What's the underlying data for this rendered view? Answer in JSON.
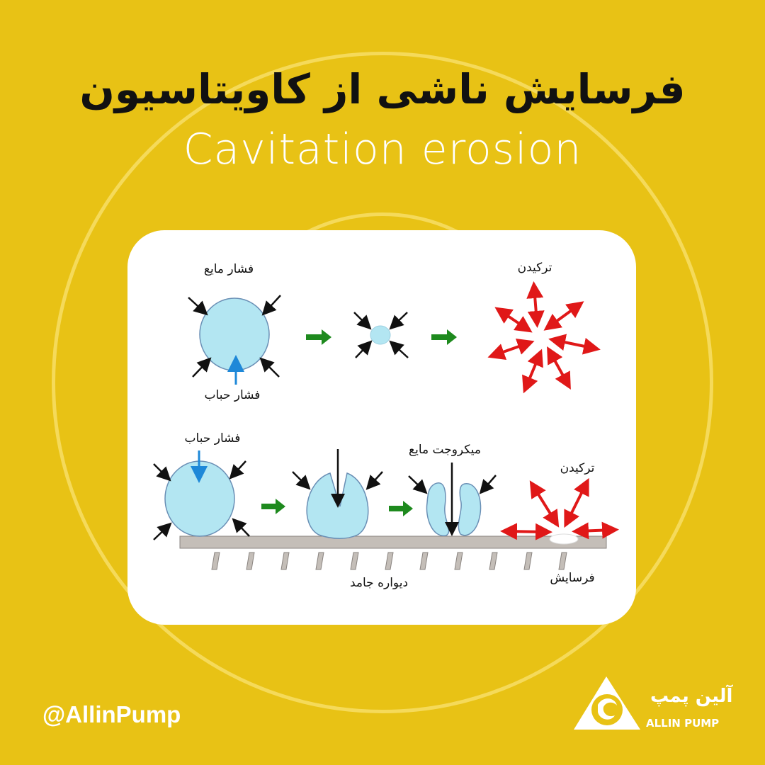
{
  "header": {
    "title": "فرسایش ناشی از کاویتاسیون",
    "subtitle": "Cavitation erosion"
  },
  "diagram": {
    "top_row": {
      "liquid_pressure_label": "فشار مایع",
      "bubble_pressure_label": "فشار حباب",
      "burst_label": "ترکیدن"
    },
    "bottom_row": {
      "bubble_pressure_label": "فشار حباب",
      "microjet_label": "میکروجت مایع",
      "burst_label": "ترکیدن",
      "solid_wall_label": "دیواره جامد",
      "erosion_label": "فرسایش"
    },
    "colors": {
      "bubble": "#B3E6F2",
      "bubble_pressure_arrow": "#1E88D8",
      "process_arrow": "#1E8A1E",
      "burst_arrow": "#E01818",
      "wall": "#C4BEB8"
    }
  },
  "footer": {
    "handle": "@AllinPump",
    "logo_text_fa": "آلین پمپ",
    "logo_text_en": "ALLIN PUMP"
  },
  "colors": {
    "background": "#E8C215",
    "ring": "#F5DA5A"
  }
}
